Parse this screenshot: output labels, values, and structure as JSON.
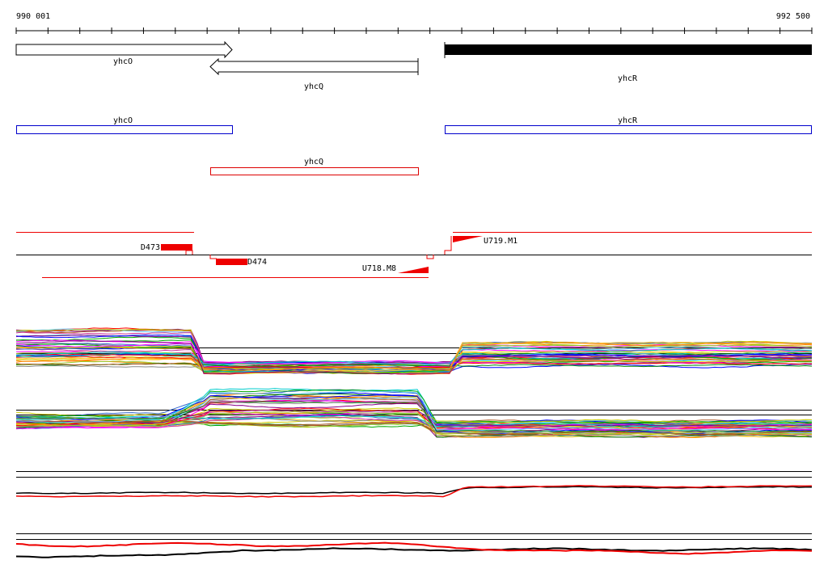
{
  "ruler": {
    "start": "990 001",
    "end": "992 500"
  },
  "genes": {
    "yhcO": "yhcO",
    "yhcQ": "yhcQ",
    "yhcR": "yhcR"
  },
  "annotations": {
    "yhcO": "yhcO",
    "yhcQ": "yhcQ",
    "yhcR": "yhcR"
  },
  "features": {
    "d473": "D473",
    "d474": "D474",
    "u719": "U719.M1",
    "u718": "U718.M8"
  }
}
